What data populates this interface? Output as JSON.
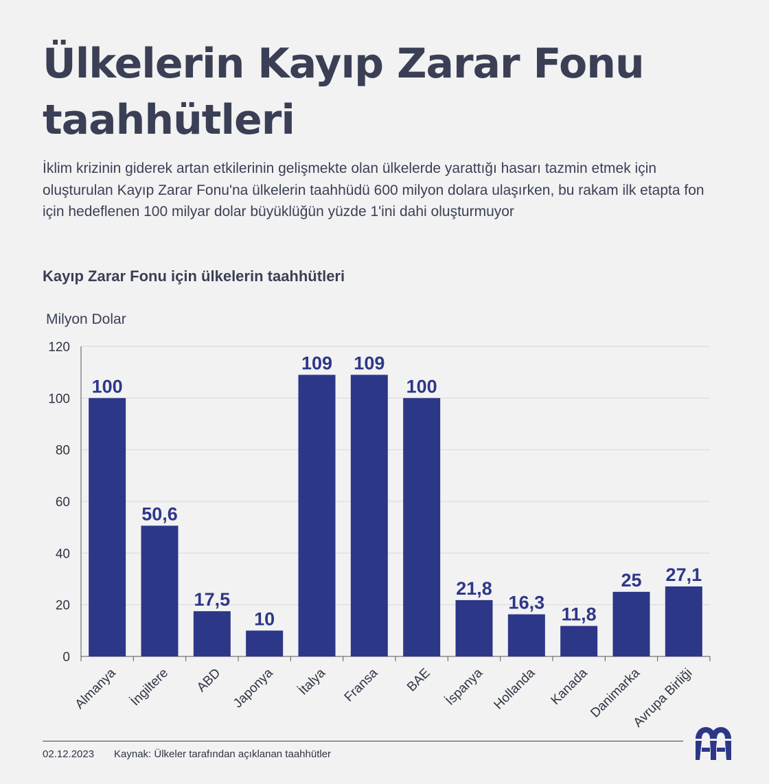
{
  "title": "Ülkelerin Kayıp Zarar Fonu taahhütleri",
  "subtitle": "İklim krizinin giderek artan etkilerinin gelişmekte olan ülkelerde yarattığı hasarı tazmin etmek için oluşturulan Kayıp Zarar Fonu'na ülkelerin taahhüdü 600 milyon dolara ulaşırken, bu rakam ilk etapta fon için hedeflenen 100 milyar dolar büyüklüğün yüzde 1'ini dahi oluşturmuyor",
  "chart_data": {
    "type": "bar",
    "title": "Kayıp Zarar Fonu için ülkelerin taahhütleri",
    "ylabel": "Milyon Dolar",
    "xlabel": "",
    "categories": [
      "Almanya",
      "İngiltere",
      "ABD",
      "Japonya",
      "İtalya",
      "Fransa",
      "BAE",
      "İspanya",
      "Hollanda",
      "Kanada",
      "Danimarka",
      "Avrupa Birliği"
    ],
    "values": [
      100,
      50.6,
      17.5,
      10,
      109,
      109,
      100,
      21.8,
      16.3,
      11.8,
      25,
      27.1
    ],
    "value_labels": [
      "100",
      "50,6",
      "17,5",
      "10",
      "109",
      "109",
      "100",
      "21,8",
      "16,3",
      "11,8",
      "25",
      "27,1"
    ],
    "yticks": [
      "0",
      "20",
      "40",
      "60",
      "80",
      "100",
      "120"
    ],
    "ylim": [
      0,
      120
    ],
    "grid": true,
    "legend": "none",
    "bar_color": "#2d3788",
    "grid_color": "#d8d8d8",
    "axis_color": "#555555"
  },
  "footer": {
    "date": "02.12.2023",
    "source": "Kaynak: Ülkeler tarafından açıklanan taahhütler"
  },
  "logo": {
    "icon": "aa-logo-icon",
    "color": "#2d3788"
  }
}
